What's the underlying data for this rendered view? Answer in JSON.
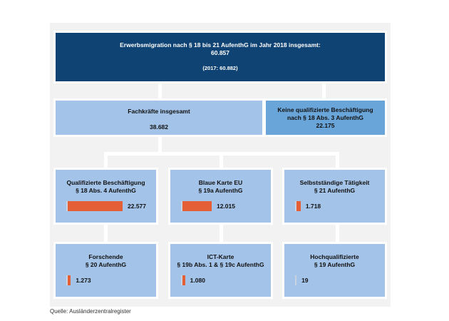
{
  "top": {
    "title": "Erwerbsmigration nach § 18 bis 21 AufenthG im Jahr 2018 insgesamt:",
    "total": "60.857",
    "prev": "(2017: 60.882)"
  },
  "level2": [
    {
      "title": "Fachkräfte insgesamt",
      "value": "38.682"
    },
    {
      "title1": "Keine qualifizierte Beschäftigung",
      "title2": "nach § 18 Abs. 3 AufenthG",
      "value": "22.175"
    }
  ],
  "categories": [
    {
      "title1": "Qualifizierte Beschäftigung",
      "title2": "§ 18 Abs. 4 AufenthG",
      "value": "22.577",
      "number": 22577
    },
    {
      "title1": "Blaue Karte EU",
      "title2": "§ 19a AufenthG",
      "value": "12.015",
      "number": 12015
    },
    {
      "title1": "Selbstständige Tätigkeit",
      "title2": "§ 21 AufenthG",
      "value": "1.718",
      "number": 1718
    },
    {
      "title1": "Forschende",
      "title2": "§ 20 AufenthG",
      "value": "1.273",
      "number": 1273
    },
    {
      "title1": "ICT-Karte",
      "title2": "§ 19b Abs. 1 & § 19c AufenthG",
      "value": "1.080",
      "number": 1080
    },
    {
      "title1": "Hochqualifizierte",
      "title2": "§ 19 AufenthG",
      "value": "19",
      "number": 19
    }
  ],
  "source": "Quelle: Ausländerzentralregister",
  "colors": {
    "dark": "#0f4374",
    "light": "#a3c3e8",
    "mid": "#6aa5da",
    "bar": "#e55f36"
  }
}
